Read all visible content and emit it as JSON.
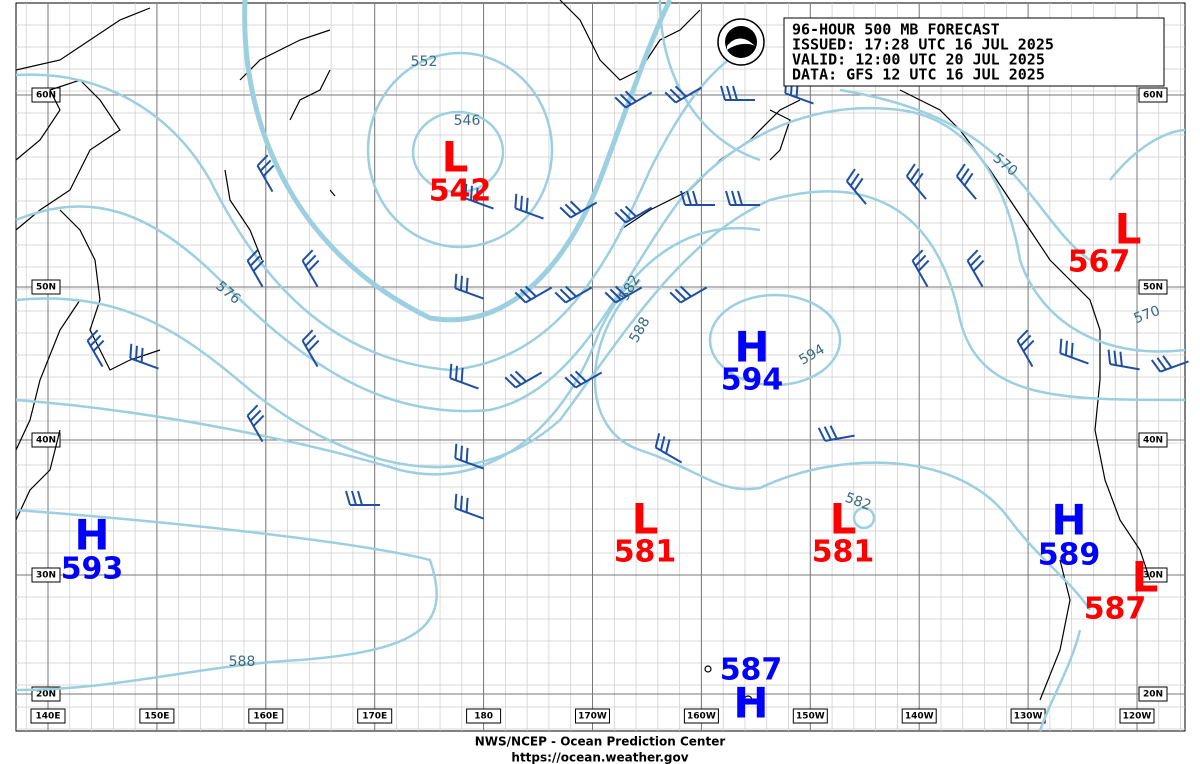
{
  "header": {
    "lines": [
      "96-HOUR 500 MB FORECAST",
      "ISSUED: 17:28 UTC 16 JUL 2025",
      "VALID:  12:00 UTC 20 JUL 2025",
      "DATA:  GFS 12 UTC 16 JUL 2025"
    ]
  },
  "lat_labels": [
    "60N",
    "50N",
    "40N",
    "30N",
    "20N"
  ],
  "lon_labels": [
    "140E",
    "150E",
    "160E",
    "170E",
    "180",
    "170W",
    "160W",
    "150W",
    "140W",
    "130W",
    "120W"
  ],
  "pressure_centers": [
    {
      "type": "L",
      "value": 542
    },
    {
      "type": "H",
      "value": 594
    },
    {
      "type": "L",
      "value": 581
    },
    {
      "type": "L",
      "value": 581
    },
    {
      "type": "H",
      "value": 593
    },
    {
      "type": "H",
      "value": 589
    },
    {
      "type": "L",
      "value": 567
    },
    {
      "type": "L",
      "value": 587
    },
    {
      "type": "H",
      "value": 587
    }
  ],
  "contour_labels": [
    552,
    546,
    576,
    582,
    588,
    594,
    570,
    570,
    582,
    588
  ],
  "footer": {
    "office": "NWS/NCEP - Ocean Prediction Center",
    "url": "https://ocean.weather.gov"
  }
}
